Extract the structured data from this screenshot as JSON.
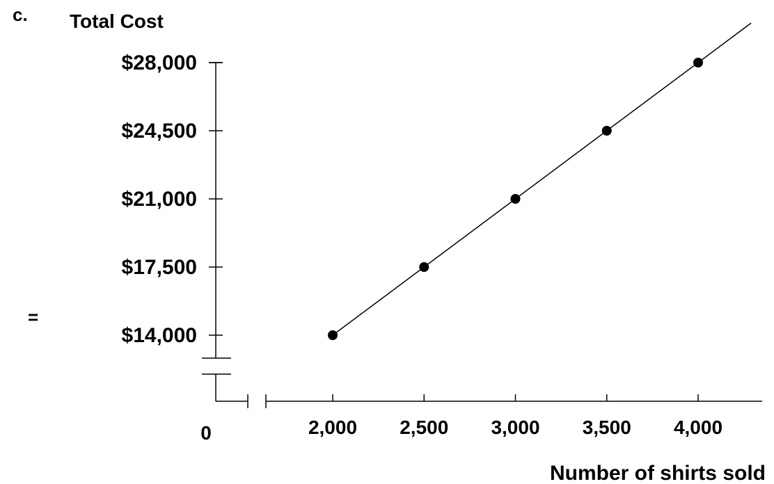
{
  "panel_label": "c.",
  "side_mark": "=",
  "chart_data": {
    "type": "line",
    "title": "Total Cost",
    "xlabel": "Number of shirts sold",
    "ylabel": "",
    "x_tick_labels": [
      "0",
      "2,000",
      "2,500",
      "3,000",
      "3,500",
      "4,000"
    ],
    "y_tick_labels": [
      "$14,000",
      "$17,500",
      "$21,000",
      "$24,500",
      "$28,000"
    ],
    "y_ticks": [
      14000,
      17500,
      21000,
      24500,
      28000
    ],
    "x_ticks_shown": [
      2000,
      2500,
      3000,
      3500,
      4000
    ],
    "xlim": [
      1400,
      4300
    ],
    "ylim": [
      14000,
      28000
    ],
    "axis_breaks": {
      "x": true,
      "y": true
    },
    "grid": false,
    "series": [
      {
        "x": [
          2000,
          2500,
          3000,
          3500,
          4000
        ],
        "y": [
          14000,
          17500,
          21000,
          24500,
          28000
        ]
      }
    ]
  }
}
